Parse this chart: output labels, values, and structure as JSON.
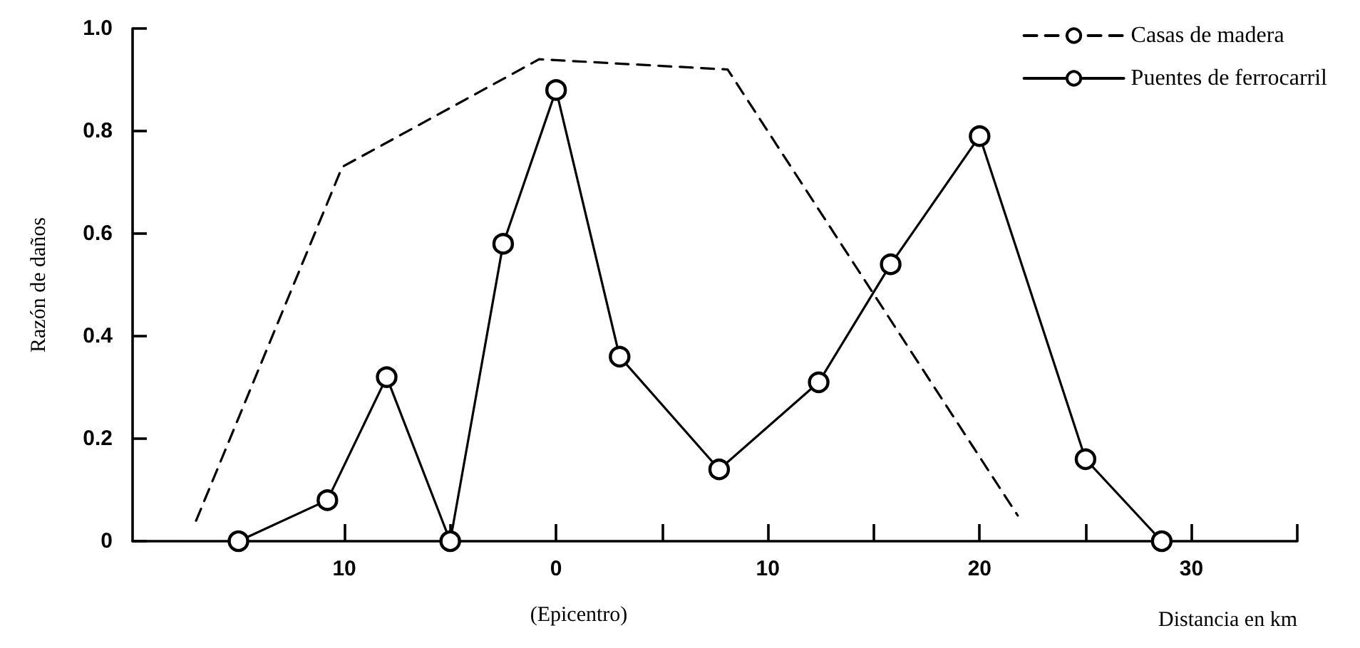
{
  "chart_data": {
    "type": "line",
    "xlabel": "Distancia en km",
    "ylabel": "Razón de daños",
    "annotations": [
      "(Epicentro)"
    ],
    "xlim": [
      -20,
      35
    ],
    "xticks": [
      {
        "value": -10,
        "label": "10"
      },
      {
        "value": -5,
        "label": null
      },
      0,
      {
        "value": 5,
        "label": null
      },
      10,
      {
        "value": 15,
        "label": null
      },
      20,
      {
        "value": 25,
        "label": null
      },
      30,
      {
        "value": 35,
        "label": null
      }
    ],
    "ylim": [
      0,
      1
    ],
    "yticks": [
      0,
      0.2,
      0.4,
      0.6,
      0.8,
      {
        "value": 1,
        "label": "1.0"
      }
    ],
    "grid": false,
    "legend": "top right",
    "series": [
      {
        "name": "Casas de madera",
        "color": "#000000",
        "line_style": "dashed",
        "marker": "none",
        "x": [
          -17,
          -10.1,
          -0.8,
          8.1,
          21.8
        ],
        "values": [
          0.04,
          0.73,
          0.94,
          0.92,
          0.05
        ]
      },
      {
        "name": "Puentes de ferrocarril",
        "color": "#000000",
        "line_style": "solid",
        "marker": "circle",
        "x": [
          -15,
          -10.8,
          -8,
          -5,
          -2.5,
          0,
          3,
          7.7,
          12.4,
          15.8,
          20,
          25,
          28.6
        ],
        "values": [
          0,
          0.08,
          0.32,
          0,
          0.58,
          0.88,
          0.36,
          0.14,
          0.31,
          0.54,
          0.79,
          0.16,
          0
        ]
      }
    ]
  }
}
